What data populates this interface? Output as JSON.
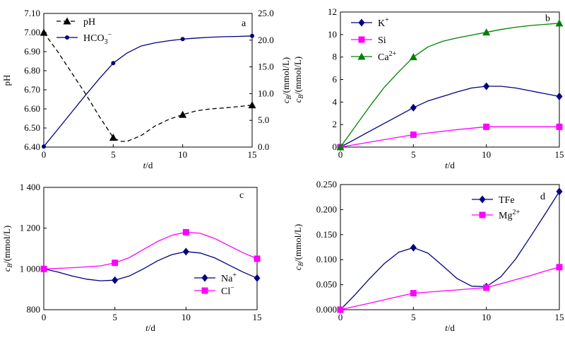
{
  "chart_data": [
    {
      "panel": "a",
      "type": "line",
      "x": [
        0,
        5,
        10,
        15
      ],
      "xlim": [
        0,
        15
      ],
      "xticks": [
        "0",
        "5",
        "10",
        "15"
      ],
      "xlabel": "t/d",
      "ylabel": "pH",
      "ylim": [
        6.4,
        7.1
      ],
      "yticks": [
        "6.40",
        "6.50",
        "6.60",
        "6.70",
        "6.80",
        "6.90",
        "7.00",
        "7.10"
      ],
      "y2label": "cB/(mmol/L)",
      "y2lim": [
        0,
        25
      ],
      "y2ticks": [
        "0.0",
        "5.0",
        "10.0",
        "15.0",
        "20.0",
        "25.0"
      ],
      "series": [
        {
          "name": "pH",
          "label_main": "pH",
          "label_sub": "",
          "label_sup": "",
          "axis": "left",
          "color": "#000000",
          "marker": "triangle",
          "dashed": true,
          "values": [
            7.0,
            6.45,
            6.57,
            6.62
          ],
          "curve_x": [
            0,
            1,
            2,
            3,
            4,
            5,
            5.5,
            6,
            7,
            8,
            9,
            10,
            11,
            12,
            13,
            14,
            15
          ],
          "curve_y": [
            7.0,
            6.9,
            6.79,
            6.68,
            6.56,
            6.45,
            6.43,
            6.43,
            6.46,
            6.51,
            6.545,
            6.57,
            6.59,
            6.6,
            6.605,
            6.612,
            6.62
          ]
        },
        {
          "name": "HCO3-",
          "label_main": "HCO",
          "label_sub": "3",
          "label_sup": "−",
          "axis": "right",
          "color": "#000080",
          "marker": "circle",
          "dashed": false,
          "values": [
            0.1,
            15.7,
            20.2,
            20.8
          ],
          "curve_x": [
            0,
            1,
            2,
            3,
            4,
            5,
            6,
            7,
            8,
            9,
            10,
            11,
            12,
            13,
            14,
            15
          ],
          "curve_y": [
            0.1,
            3.3,
            6.5,
            9.7,
            12.8,
            15.7,
            17.6,
            18.9,
            19.5,
            19.9,
            20.2,
            20.4,
            20.55,
            20.65,
            20.7,
            20.8
          ]
        }
      ]
    },
    {
      "panel": "b",
      "type": "line",
      "x": [
        0,
        5,
        10,
        15
      ],
      "xlim": [
        0,
        15
      ],
      "xticks": [
        "0",
        "5",
        "10",
        "15"
      ],
      "xlabel": "t/d",
      "ylabel": "cB/(mmol/L)",
      "ylim": [
        0,
        12
      ],
      "yticks": [
        "0",
        "2",
        "4",
        "6",
        "8",
        "10",
        "12"
      ],
      "series": [
        {
          "name": "K+",
          "label_main": "K",
          "label_sub": "",
          "label_sup": "+",
          "color": "#000080",
          "marker": "diamond",
          "values": [
            0,
            3.5,
            5.4,
            4.5
          ],
          "curve_x": [
            0,
            1,
            2,
            3,
            4,
            5,
            6,
            7,
            8,
            9,
            10,
            11,
            12,
            13,
            14,
            15
          ],
          "curve_y": [
            0,
            0.7,
            1.4,
            2.1,
            2.8,
            3.5,
            4.1,
            4.5,
            4.9,
            5.25,
            5.4,
            5.4,
            5.25,
            5.0,
            4.75,
            4.5
          ]
        },
        {
          "name": "Si",
          "label_main": "Si",
          "label_sub": "",
          "label_sup": "",
          "color": "#ff00ff",
          "marker": "square",
          "values": [
            0,
            1.1,
            1.8,
            1.8
          ],
          "curve_x": [
            0,
            1,
            2,
            3,
            4,
            5,
            6,
            7,
            8,
            9,
            10,
            11,
            12,
            13,
            14,
            15
          ],
          "curve_y": [
            0,
            0.22,
            0.44,
            0.66,
            0.88,
            1.1,
            1.25,
            1.4,
            1.55,
            1.68,
            1.8,
            1.8,
            1.8,
            1.8,
            1.8,
            1.8
          ]
        },
        {
          "name": "Ca2+",
          "label_main": "Ca",
          "label_sub": "",
          "label_sup": "2+",
          "color": "#008000",
          "marker": "triangle",
          "values": [
            0,
            8.0,
            10.2,
            11.0
          ],
          "curve_x": [
            0,
            1,
            2,
            3,
            4,
            5,
            6,
            7,
            8,
            9,
            10,
            11,
            12,
            13,
            14,
            15
          ],
          "curve_y": [
            0,
            1.8,
            3.6,
            5.3,
            6.7,
            8.0,
            8.9,
            9.4,
            9.7,
            9.95,
            10.2,
            10.45,
            10.65,
            10.8,
            10.9,
            11.0
          ]
        }
      ]
    },
    {
      "panel": "c",
      "type": "line",
      "x": [
        0,
        5,
        10,
        15
      ],
      "xlim": [
        0,
        15
      ],
      "xticks": [
        "0",
        "5",
        "10",
        "15"
      ],
      "xlabel": "t/d",
      "ylabel": "cB/(mmol/L)",
      "ylim": [
        800,
        1400
      ],
      "yticks": [
        "800",
        "1 000",
        "1 200",
        "1 400"
      ],
      "series": [
        {
          "name": "Na+",
          "label_main": "Na",
          "label_sub": "",
          "label_sup": "+",
          "color": "#000080",
          "marker": "diamond",
          "values": [
            1000,
            945,
            1085,
            955
          ],
          "curve_x": [
            0,
            1,
            2,
            3,
            4,
            5,
            6,
            7,
            8,
            9,
            10,
            11,
            12,
            13,
            14,
            15
          ],
          "curve_y": [
            1000,
            985,
            965,
            950,
            942,
            945,
            965,
            1000,
            1040,
            1070,
            1085,
            1078,
            1055,
            1020,
            985,
            955
          ]
        },
        {
          "name": "Cl-",
          "label_main": "Cl",
          "label_sub": "",
          "label_sup": "−",
          "color": "#ff00ff",
          "marker": "square",
          "values": [
            1000,
            1030,
            1180,
            1050
          ],
          "curve_x": [
            0,
            1,
            2,
            3,
            4,
            5,
            6,
            7,
            8,
            9,
            10,
            11,
            12,
            13,
            14,
            15
          ],
          "curve_y": [
            1000,
            1003,
            1006,
            1010,
            1015,
            1030,
            1055,
            1095,
            1135,
            1165,
            1180,
            1175,
            1150,
            1115,
            1080,
            1050
          ]
        }
      ]
    },
    {
      "panel": "d",
      "type": "line",
      "x": [
        0,
        5,
        10,
        15
      ],
      "xlim": [
        0,
        15
      ],
      "xticks": [
        "0",
        "5",
        "10",
        "15"
      ],
      "xlabel": "t/d",
      "ylabel": "cB/(mmol/L)",
      "ylim": [
        0,
        0.25
      ],
      "yticks": [
        "0.000",
        "0.050",
        "0.100",
        "0.150",
        "0.200",
        "0.250"
      ],
      "series": [
        {
          "name": "TFe",
          "label_main": "TFe",
          "label_sub": "",
          "label_sup": "",
          "color": "#000080",
          "marker": "diamond",
          "values": [
            0,
            0.124,
            0.046,
            0.236
          ],
          "curve_x": [
            0,
            1,
            2,
            3,
            4,
            5,
            6,
            7,
            8,
            9,
            10,
            11,
            12,
            13,
            14,
            15
          ],
          "curve_y": [
            0,
            0.03,
            0.062,
            0.092,
            0.115,
            0.124,
            0.113,
            0.088,
            0.062,
            0.047,
            0.046,
            0.066,
            0.101,
            0.145,
            0.19,
            0.236
          ]
        },
        {
          "name": "Mg2+",
          "label_main": "Mg",
          "label_sub": "",
          "label_sup": "2+",
          "color": "#ff00ff",
          "marker": "square",
          "values": [
            0,
            0.033,
            0.044,
            0.085
          ],
          "curve_x": [
            0,
            1,
            2,
            3,
            4,
            5,
            6,
            7,
            8,
            9,
            10,
            11,
            12,
            13,
            14,
            15
          ],
          "curve_y": [
            0,
            0.0066,
            0.0132,
            0.0198,
            0.0264,
            0.033,
            0.0352,
            0.0374,
            0.0396,
            0.0418,
            0.044,
            0.052,
            0.06,
            0.068,
            0.077,
            0.085
          ]
        }
      ]
    }
  ]
}
